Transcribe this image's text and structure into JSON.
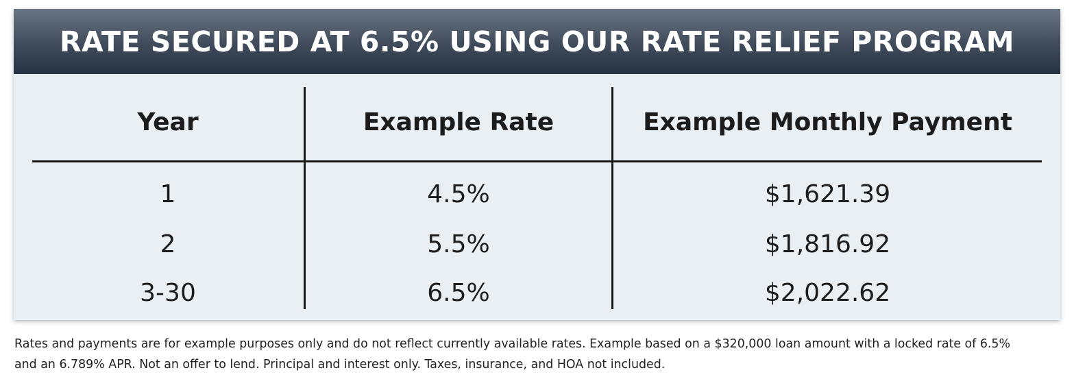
{
  "banner": {
    "title": "RATE SECURED AT 6.5% USING OUR RATE RELIEF PROGRAM"
  },
  "table": {
    "headers": [
      "Year",
      "Example Rate",
      "Example Monthly Payment"
    ],
    "rows": [
      [
        "1",
        "4.5%",
        "$1,621.39"
      ],
      [
        "2",
        "5.5%",
        "$1,816.92"
      ],
      [
        "3-30",
        "6.5%",
        "$2,022.62"
      ]
    ]
  },
  "footnote": {
    "line1": "Rates and payments are for example purposes only and do not reflect currently available rates. Example based on a $320,000 loan amount with a locked rate of 6.5%",
    "line2": "and an 6.789% APR. Not an offer to lend. Principal and interest only. Taxes, insurance, and HOA not included."
  },
  "colors": {
    "banner_top": "#6a7684",
    "banner_bottom": "#263344",
    "card_background": "#eaeff4",
    "text": "#1c1c1c"
  }
}
